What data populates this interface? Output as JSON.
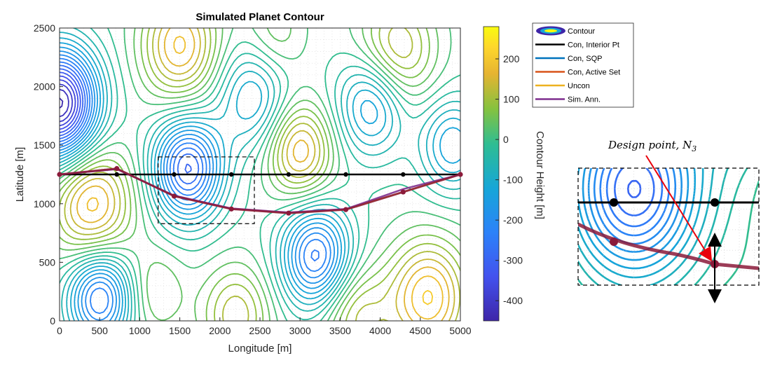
{
  "chart_data": {
    "type": "line",
    "title": "Simulated Planet Contour",
    "xlabel": "Longitude [m]",
    "ylabel": "Latitude [m]",
    "xlim": [
      0,
      5000
    ],
    "ylim": [
      0,
      2500
    ],
    "xticks": [
      0,
      500,
      1000,
      1500,
      2000,
      2500,
      3000,
      3500,
      4000,
      4500,
      5000
    ],
    "yticks": [
      0,
      500,
      1000,
      1500,
      2000,
      2500
    ],
    "grid": true,
    "colorbar": {
      "label": "Contour Height [m]",
      "range": [
        -450,
        280
      ],
      "ticks": [
        -400,
        -300,
        -200,
        -100,
        0,
        100,
        200
      ]
    },
    "legend": {
      "placement": "outside-top-right",
      "entries": [
        "Contour",
        "Con, Interior Pt",
        "Con, SQP",
        "Con, Active Set",
        "Uncon",
        "Sim. Ann."
      ]
    },
    "series": [
      {
        "name": "Con, Interior Pt",
        "color": "#000000",
        "x": [
          0,
          714,
          1429,
          2143,
          2857,
          3571,
          4286,
          5000
        ],
        "y": [
          1250,
          1250,
          1250,
          1250,
          1250,
          1250,
          1250,
          1250
        ]
      },
      {
        "name": "Con, SQP",
        "color": "#0072BD",
        "x": [
          0,
          714,
          1429,
          2143,
          2857,
          3571,
          4286,
          5000
        ],
        "y": [
          1250,
          1300,
          1065,
          955,
          920,
          950,
          1100,
          1250
        ]
      },
      {
        "name": "Con, Active Set",
        "color": "#D95319",
        "x": [
          0,
          714,
          1429,
          2143,
          2857,
          3571,
          4286,
          5000
        ],
        "y": [
          1250,
          1300,
          1065,
          955,
          920,
          950,
          1100,
          1250
        ]
      },
      {
        "name": "Uncon",
        "color": "#EDB120",
        "x": [
          0,
          714,
          1429,
          2143,
          2857,
          3571,
          4286,
          5000
        ],
        "y": [
          1250,
          1300,
          1065,
          955,
          920,
          950,
          1100,
          1250
        ]
      },
      {
        "name": "Sim. Ann.",
        "color": "#7E2F8E",
        "x": [
          0,
          714,
          1429,
          2143,
          2857,
          3571,
          4286,
          5000
        ],
        "y": [
          1250,
          1295,
          1070,
          960,
          925,
          955,
          1125,
          1250
        ]
      }
    ],
    "highlight_box": {
      "x": [
        1230,
        2430
      ],
      "y": [
        830,
        1400
      ]
    },
    "annotation": "Design point, N"
  },
  "colors": {
    "low": "#3e26a8",
    "high": "#f9fb0e",
    "optimal_path": "#8b1a3a",
    "arrow": "#e8000b"
  }
}
